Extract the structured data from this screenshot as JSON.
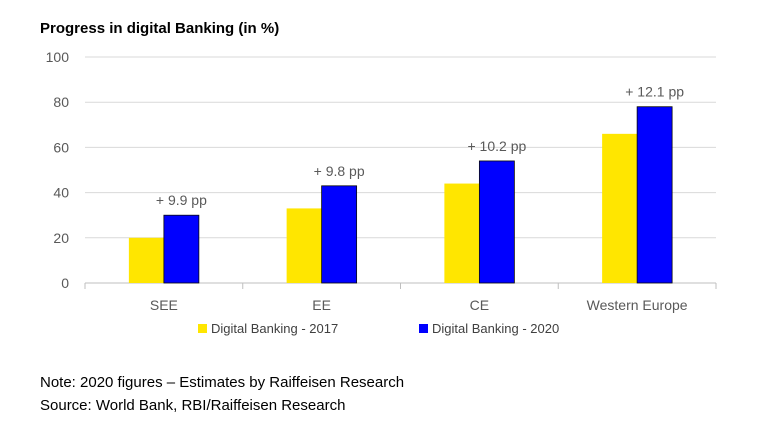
{
  "title": "Progress in digital Banking (in %)",
  "chart_data": {
    "type": "bar",
    "categories": [
      "SEE",
      "EE",
      "CE",
      "Western Europe"
    ],
    "series": [
      {
        "name": "Digital Banking - 2017",
        "values": [
          20,
          33,
          44,
          66
        ],
        "color": "#FFE600"
      },
      {
        "name": "Digital Banking - 2020",
        "values": [
          30,
          43,
          54,
          78
        ],
        "color": "#0000FF"
      }
    ],
    "annotations": [
      "+ 9.9 pp",
      "+ 9.8 pp",
      "+ 10.2 pp",
      "+ 12.1 pp"
    ],
    "ylim": [
      0,
      100
    ],
    "yticks": [
      0,
      20,
      40,
      60,
      80,
      100
    ],
    "grid": true,
    "legend_position": "bottom"
  },
  "notes": {
    "line1": "Note: 2020 figures – Estimates by Raiffeisen Research",
    "line2": "Source: World Bank, RBI/Raiffeisen Research"
  }
}
